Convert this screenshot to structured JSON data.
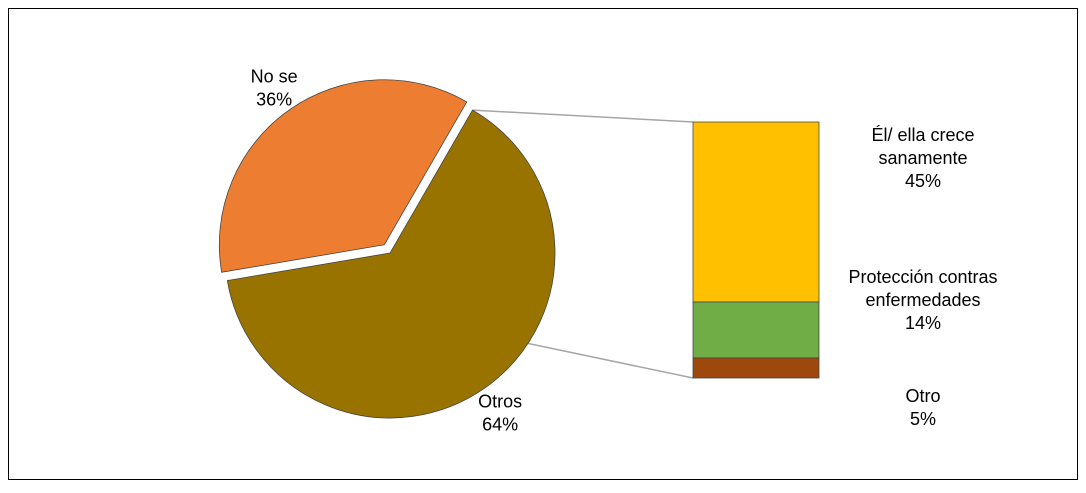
{
  "chart_data": {
    "type": "pie",
    "subtype": "bar-of-pie",
    "title": "",
    "slices": [
      {
        "label": "No se",
        "value": 36,
        "value_label": "36%",
        "color": "#ED7D31",
        "exploded": true
      },
      {
        "label": "Otros",
        "value": 64,
        "value_label": "64%",
        "color": "#997300",
        "exploded": false
      }
    ],
    "breakdown_of": "Otros",
    "breakdown": [
      {
        "label_lines": [
          "Él/ ella crece",
          "sanamente"
        ],
        "value": 45,
        "value_label": "45%",
        "color": "#FFC000"
      },
      {
        "label_lines": [
          "Protección contras",
          "enfermedades"
        ],
        "value": 14,
        "value_label": "14%",
        "color": "#70AD47"
      },
      {
        "label_lines": [
          "Otro"
        ],
        "value": 5,
        "value_label": "5%",
        "color": "#9E480E"
      }
    ],
    "legend": "none",
    "grid": false
  }
}
